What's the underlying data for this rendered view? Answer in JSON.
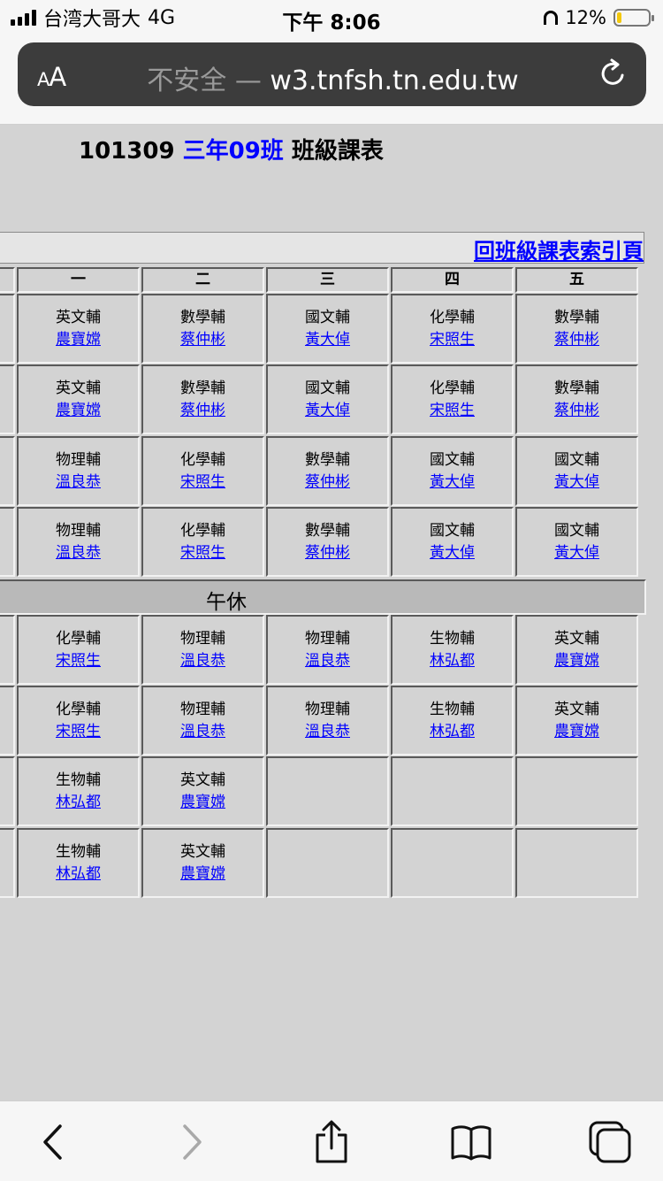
{
  "status": {
    "carrier": "台湾大哥大",
    "network": "4G",
    "time": "下午 8:06",
    "battery": "12%"
  },
  "browser": {
    "aa_small": "A",
    "aa_big": "A",
    "insecure": "不安全",
    "separator": " — ",
    "domain": "w3.tnfsh.tn.edu.tw"
  },
  "page": {
    "class_code": "101309",
    "class_name": "三年09班",
    "title_suffix": "班級課表",
    "index_link": "回班級課表索引頁"
  },
  "days": [
    "一",
    "二",
    "三",
    "四",
    "五"
  ],
  "lunch_label": "午休",
  "morning": [
    [
      {
        "s": "英文輔",
        "t": "農寶嫦"
      },
      {
        "s": "數學輔",
        "t": "蔡仲彬"
      },
      {
        "s": "國文輔",
        "t": "黃大倬"
      },
      {
        "s": "化學輔",
        "t": "宋照生"
      },
      {
        "s": "數學輔",
        "t": "蔡仲彬"
      }
    ],
    [
      {
        "s": "英文輔",
        "t": "農寶嫦"
      },
      {
        "s": "數學輔",
        "t": "蔡仲彬"
      },
      {
        "s": "國文輔",
        "t": "黃大倬"
      },
      {
        "s": "化學輔",
        "t": "宋照生"
      },
      {
        "s": "數學輔",
        "t": "蔡仲彬"
      }
    ],
    [
      {
        "s": "物理輔",
        "t": "溫良恭"
      },
      {
        "s": "化學輔",
        "t": "宋照生"
      },
      {
        "s": "數學輔",
        "t": "蔡仲彬"
      },
      {
        "s": "國文輔",
        "t": "黃大倬"
      },
      {
        "s": "國文輔",
        "t": "黃大倬"
      }
    ],
    [
      {
        "s": "物理輔",
        "t": "溫良恭"
      },
      {
        "s": "化學輔",
        "t": "宋照生"
      },
      {
        "s": "數學輔",
        "t": "蔡仲彬"
      },
      {
        "s": "國文輔",
        "t": "黃大倬"
      },
      {
        "s": "國文輔",
        "t": "黃大倬"
      }
    ]
  ],
  "afternoon": [
    [
      {
        "s": "化學輔",
        "t": "宋照生"
      },
      {
        "s": "物理輔",
        "t": "溫良恭"
      },
      {
        "s": "物理輔",
        "t": "溫良恭"
      },
      {
        "s": "生物輔",
        "t": "林弘都"
      },
      {
        "s": "英文輔",
        "t": "農寶嫦"
      }
    ],
    [
      {
        "s": "化學輔",
        "t": "宋照生"
      },
      {
        "s": "物理輔",
        "t": "溫良恭"
      },
      {
        "s": "物理輔",
        "t": "溫良恭"
      },
      {
        "s": "生物輔",
        "t": "林弘都"
      },
      {
        "s": "英文輔",
        "t": "農寶嫦"
      }
    ],
    [
      {
        "s": "生物輔",
        "t": "林弘都"
      },
      {
        "s": "英文輔",
        "t": "農寶嫦"
      },
      null,
      null,
      null
    ],
    [
      {
        "s": "生物輔",
        "t": "林弘都"
      },
      {
        "s": "英文輔",
        "t": "農寶嫦"
      },
      null,
      null,
      null
    ]
  ]
}
